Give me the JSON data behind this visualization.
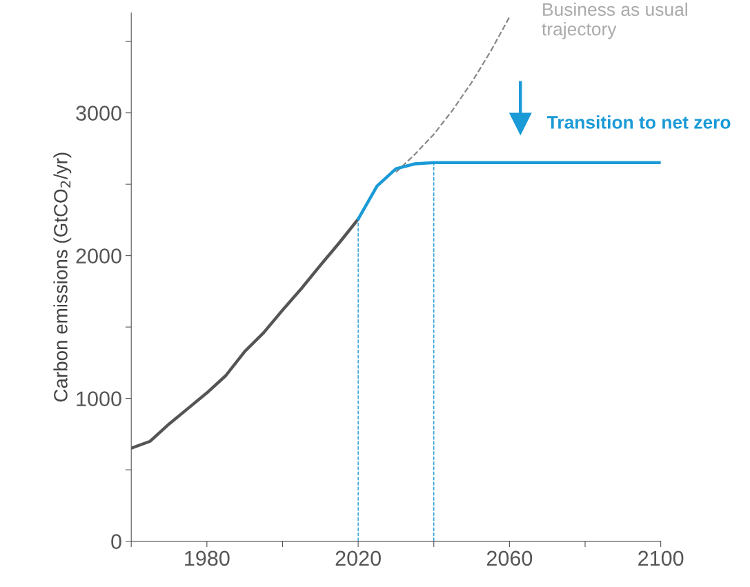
{
  "chart_data": {
    "type": "line",
    "ylabel": "Carbon emissions (GtCO$_{2}$/yr)",
    "xlim": [
      1960,
      2100
    ],
    "xticks": [
      {
        "value": 1960,
        "label": null
      },
      1980,
      {
        "value": 2000,
        "label": null
      },
      2020,
      {
        "value": 2040,
        "label": null
      },
      2060,
      {
        "value": 2080,
        "label": null
      },
      2100
    ],
    "ylim": [
      0,
      3700
    ],
    "yticks": [
      0,
      {
        "value": 500,
        "label": null
      },
      1000,
      {
        "value": 1500,
        "label": null
      },
      2000,
      {
        "value": 2500,
        "label": null
      },
      3000,
      {
        "value": 3500,
        "label": null
      }
    ],
    "grid": false,
    "annotations": [
      "Business as usual trajectory",
      "Transition to net zero"
    ],
    "series": [
      {
        "color": "#555555",
        "x": [
          1960,
          1965,
          1970,
          1975,
          1980,
          1985,
          1990,
          1995,
          2000,
          2005,
          2010,
          2015,
          2020
        ],
        "values": [
          652,
          700,
          821,
          930,
          1039,
          1160,
          1329,
          1460,
          1618,
          1770,
          1932,
          2090,
          2256
        ]
      },
      {
        "color": "#888888",
        "line_style": "dashed",
        "x": [
          2030,
          2035,
          2040,
          2045,
          2050,
          2055,
          2060
        ],
        "values": [
          2585,
          2710,
          2850,
          3020,
          3213,
          3430,
          3671
        ]
      },
      {
        "color": "#1a9ad6",
        "x": [
          2020,
          2025,
          2030,
          2035,
          2040,
          2060,
          2080,
          2100
        ],
        "values": [
          2256,
          2488,
          2609,
          2643,
          2652,
          2652,
          2652,
          2652
        ]
      }
    ],
    "ref_lines": [
      {
        "axis": "x",
        "value": 2020,
        "color": "#1a9ad6",
        "line_style": "dashed"
      },
      {
        "axis": "x",
        "value": 2040,
        "color": "#1a9ad6",
        "line_style": "dashed"
      }
    ]
  }
}
